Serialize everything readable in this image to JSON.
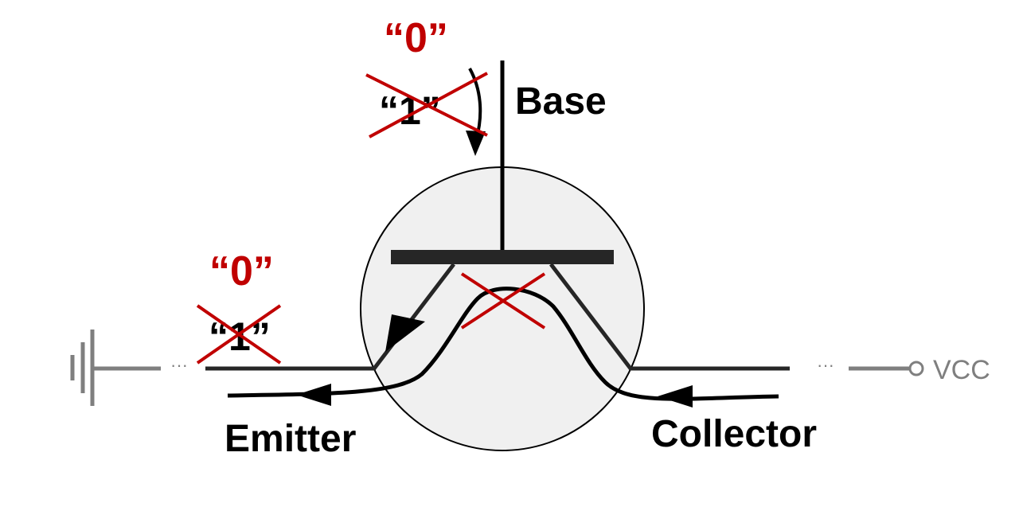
{
  "terminals": {
    "base": "Base",
    "emitter": "Emitter",
    "collector": "Collector",
    "vcc": "VCC"
  },
  "logic": {
    "base_new": "“0”",
    "base_old": "“1”",
    "emitter_new": "“0”",
    "emitter_old": "“1”"
  },
  "wire_gap": {
    "left": "···",
    "right": "···"
  },
  "colors": {
    "ink": "#000000",
    "cross": "#c00000",
    "logic_text": "#c00000",
    "gray": "#7f7f7f",
    "body_fill": "#f0f0f0",
    "base_plate": "#262626"
  }
}
